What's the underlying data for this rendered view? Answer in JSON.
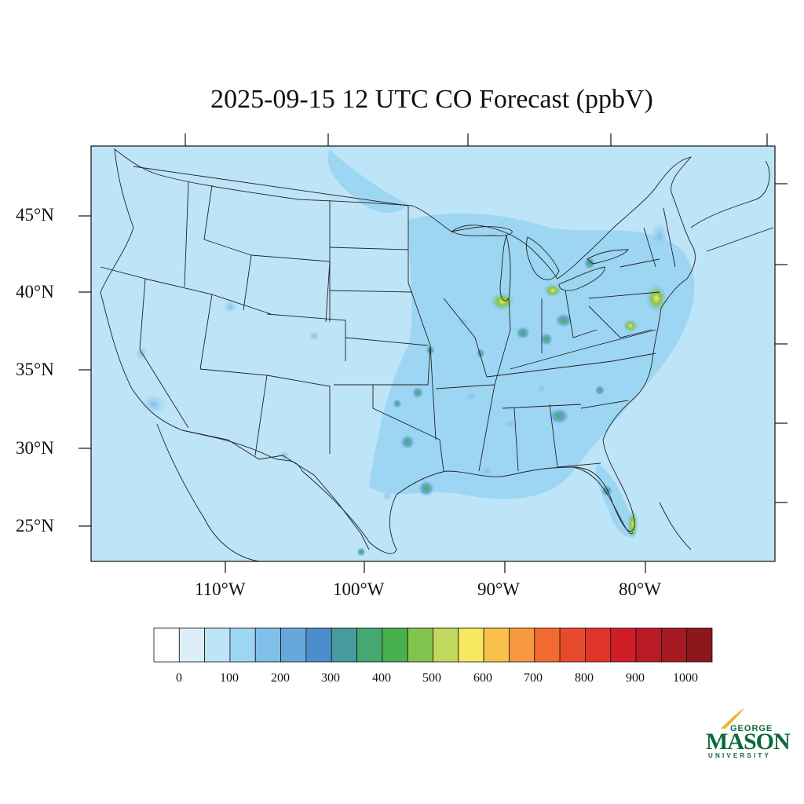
{
  "title": "2025-09-15 12 UTC CO Forecast (ppbV)",
  "lat_labels": [
    "45°N",
    "40°N",
    "35°N",
    "30°N",
    "25°N"
  ],
  "lon_labels": [
    "110°W",
    "100°W",
    "90°W",
    "80°W"
  ],
  "colorbar": {
    "colors": [
      "#ffffff",
      "#dceff9",
      "#bde4f7",
      "#9dd6f3",
      "#7fbfe8",
      "#67a7dc",
      "#4b8ecd",
      "#479a9e",
      "#44a870",
      "#48b04c",
      "#83c44e",
      "#c2d75d",
      "#f6e85f",
      "#f7c14c",
      "#f6983d",
      "#f26a31",
      "#e84a2c",
      "#e0342a",
      "#d01e28",
      "#b91b25",
      "#a41a20",
      "#8e171c"
    ],
    "tick_labels": [
      "0",
      "100",
      "200",
      "300",
      "400",
      "500",
      "600",
      "700",
      "800",
      "900",
      "1000"
    ]
  },
  "logo": {
    "line1": "GEORGE",
    "line2": "MASON",
    "line3": "UNIVERSITY"
  }
}
